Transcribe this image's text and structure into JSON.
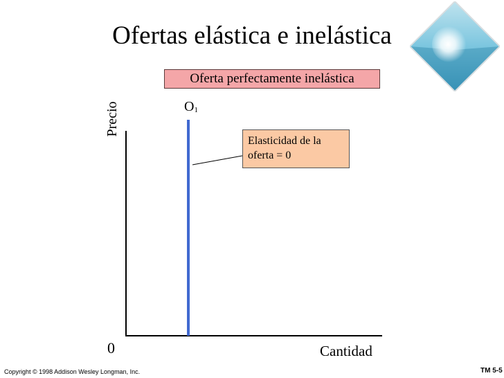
{
  "slide": {
    "title": "Ofertas elástica e inelástica",
    "copyright": "Copyright © 1998 Addison Wesley Longman, Inc.",
    "slide_number": "TM 5-5"
  },
  "diagram": {
    "header_label": "Oferta perfectamente inelástica",
    "curve_label": "O",
    "curve_subscript": "1",
    "y_axis_label": "Precio",
    "x_axis_label": "Cantidad",
    "origin_label": "0",
    "callout_line1": "Elasticidad de la",
    "callout_line2": "oferta  = 0",
    "colors": {
      "curve": "#4169d0",
      "header_box": "#f4a6a8",
      "callout_box": "#fbc9a4",
      "axis": "#000000"
    }
  }
}
